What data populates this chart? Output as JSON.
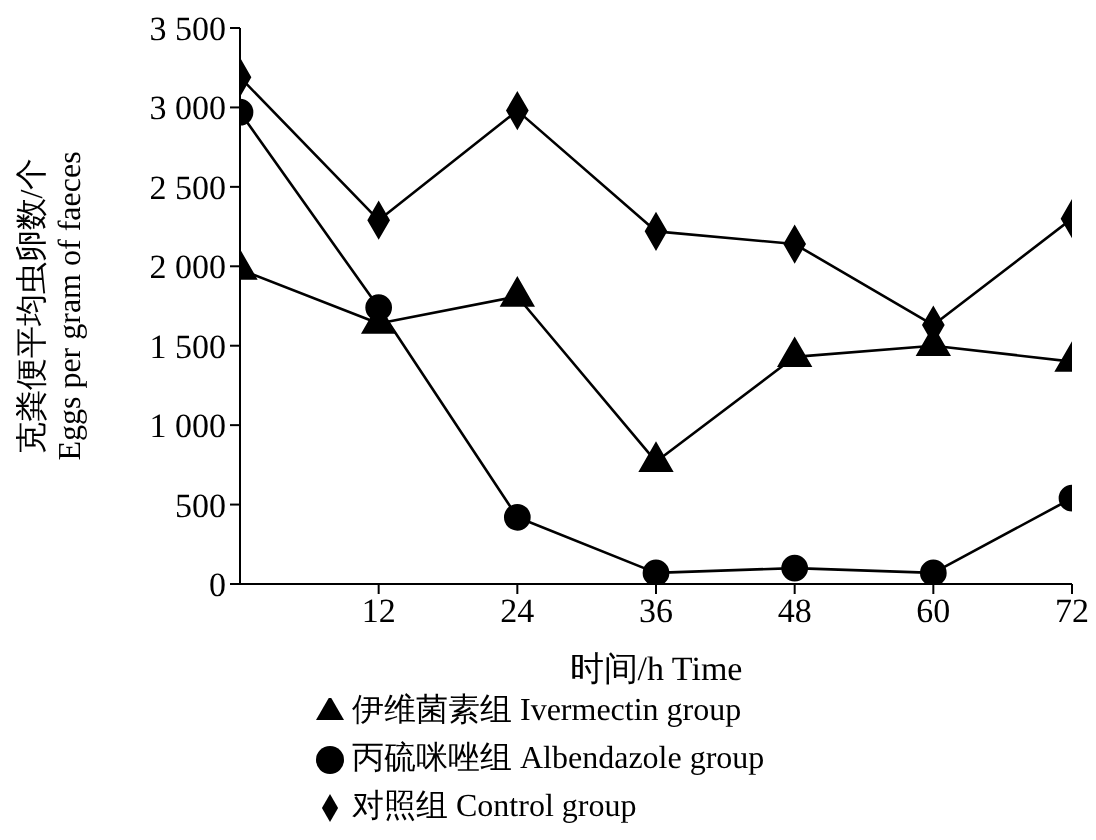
{
  "chart_data": {
    "type": "line",
    "xlabel": "时间/h  Time",
    "ylabel": "克粪便平均虫卵数/个\nEggs per gram of faeces",
    "x": [
      0,
      12,
      24,
      36,
      48,
      60,
      72
    ],
    "xlim": [
      0,
      72
    ],
    "xticks": [
      12,
      24,
      36,
      48,
      60,
      72
    ],
    "ylim": [
      0,
      3500
    ],
    "yticks": [
      0,
      500,
      {
        "value": 1000,
        "label": "1 000"
      },
      {
        "value": 1500,
        "label": "1 500"
      },
      {
        "value": 2000,
        "label": "2 000"
      },
      {
        "value": 2500,
        "label": "2 500"
      },
      {
        "value": 3000,
        "label": "3 000"
      },
      {
        "value": 3500,
        "label": "3 500"
      }
    ],
    "series": [
      {
        "name": "伊维菌素组 Ivermectin group",
        "color": "#000000",
        "marker": "triangle",
        "values": [
          1980,
          1640,
          1810,
          770,
          1430,
          1500,
          1400
        ]
      },
      {
        "name": "丙硫咪唑组 Albendazole group",
        "color": "#000000",
        "marker": "circle",
        "values": [
          2970,
          1740,
          420,
          70,
          100,
          70,
          540
        ]
      },
      {
        "name": "对照组 Control group",
        "color": "#000000",
        "marker": "diamond",
        "values": [
          3190,
          2290,
          2980,
          2220,
          2140,
          1630,
          2300
        ]
      }
    ],
    "legend": "bottom",
    "grid": false
  }
}
